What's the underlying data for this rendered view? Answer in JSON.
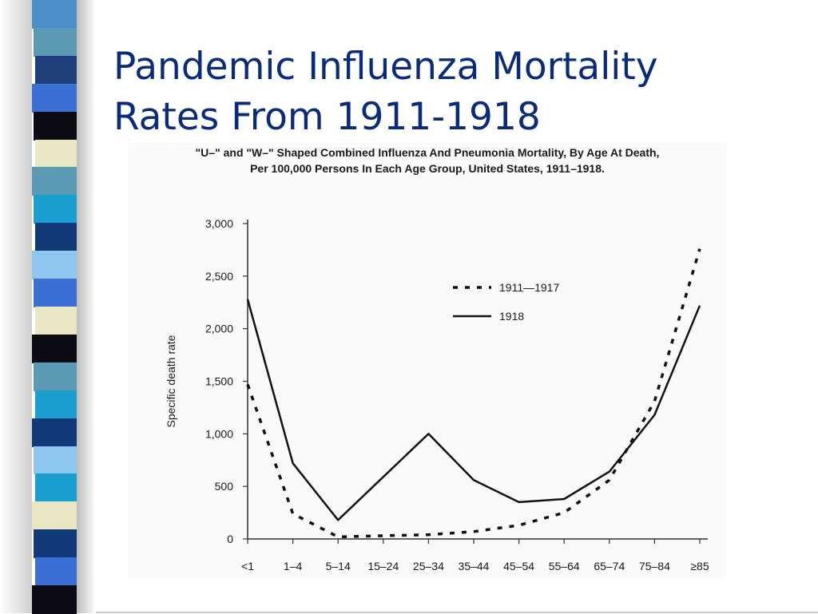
{
  "slide": {
    "title_lines": [
      "Pandemic Influenza Mortality",
      "Rates From 1911-1918"
    ],
    "caption_lines": [
      "\"U–\" and \"W–\" Shaped Combined Influenza And Pneumonia Mortality, By Age At Death,",
      "Per 100,000 Persons In Each Age Group, United States, 1911–1918."
    ],
    "title_color": "#0a2b7a",
    "side_strip_colors": [
      "#4a8fc8",
      "#5a9ab5",
      "#1f3f7a",
      "#3a6fd4",
      "#0b0b14",
      "#e8e6c3",
      "#5a9ab5",
      "#1a9fd0",
      "#123a78",
      "#8ec6f0",
      "#3a6fd4",
      "#e8e6c3",
      "#0b0b14",
      "#5a9ab5",
      "#1a9fd0",
      "#123a78",
      "#8ec6f0",
      "#1a9fd0",
      "#e8e6c3",
      "#123a78",
      "#3a6fd4",
      "#0b0b14"
    ]
  },
  "chart_data": {
    "type": "line",
    "title": "\"U–\" and \"W–\" Shaped Combined Influenza And Pneumonia Mortality, By Age At Death, Per 100,000 Persons In Each Age Group, United States, 1911–1918.",
    "xlabel": "",
    "ylabel": "Specific death rate",
    "ylim": [
      0,
      3000
    ],
    "yticks": [
      0,
      500,
      1000,
      1500,
      2000,
      2500,
      3000
    ],
    "ytick_labels": [
      "0",
      "500",
      "1,000",
      "1,500",
      "2,000",
      "2,500",
      "3,000"
    ],
    "categories": [
      "<1",
      "1–4",
      "5–14",
      "15–24",
      "25–34",
      "35–44",
      "45–54",
      "55–64",
      "65–74",
      "75–84",
      "≥85"
    ],
    "series": [
      {
        "name": "1911—1917",
        "style": "dotted",
        "values": [
          1470,
          240,
          20,
          30,
          40,
          70,
          130,
          250,
          560,
          1310,
          2760
        ]
      },
      {
        "name": "1918",
        "style": "solid",
        "values": [
          2280,
          720,
          180,
          590,
          1000,
          560,
          350,
          380,
          640,
          1180,
          2220
        ]
      }
    ],
    "legend_position": "top-right",
    "grid": false,
    "line_color": "#111111"
  }
}
